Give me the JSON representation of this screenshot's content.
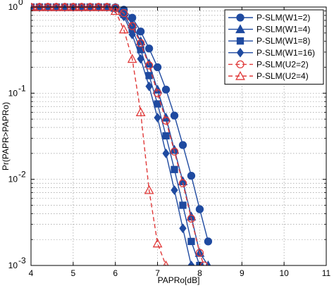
{
  "chart_data": {
    "type": "line",
    "xlabel": "PAPRo[dB]",
    "ylabel": "Pr(PAPR>PAPRo)",
    "xlim": [
      4,
      11
    ],
    "ylim": [
      0.001,
      1
    ],
    "yscale": "log",
    "grid": true,
    "legend_position": "top-right",
    "x_ticks": [
      "4",
      "5",
      "6",
      "7",
      "8",
      "9",
      "10",
      "11"
    ],
    "y_ticks": [
      {
        "value": 1,
        "base": "10",
        "exp": "0"
      },
      {
        "value": 0.1,
        "base": "10",
        "exp": "-1"
      },
      {
        "value": 0.01,
        "base": "10",
        "exp": "-2"
      },
      {
        "value": 0.001,
        "base": "10",
        "exp": "-3"
      }
    ],
    "series": [
      {
        "name": "P-SLM(W1=2)",
        "color": "#1f4aa0",
        "dash": "solid",
        "marker": "circle",
        "x": [
          4,
          4.2,
          4.4,
          4.6,
          4.8,
          5,
          5.2,
          5.4,
          5.6,
          5.8,
          6,
          6.2,
          6.4,
          6.6,
          6.8,
          7,
          7.2,
          7.4,
          7.6,
          7.8,
          8,
          8.2
        ],
        "y": [
          1,
          1,
          1,
          1,
          1,
          1,
          1,
          1,
          1,
          1,
          0.99,
          0.93,
          0.75,
          0.52,
          0.33,
          0.2,
          0.11,
          0.055,
          0.025,
          0.011,
          0.0045,
          0.0019
        ]
      },
      {
        "name": "P-SLM(W1=4)",
        "color": "#1f4aa0",
        "dash": "solid",
        "marker": "triangle",
        "x": [
          4,
          4.2,
          4.4,
          4.6,
          4.8,
          5,
          5.2,
          5.4,
          5.6,
          5.8,
          6,
          6.2,
          6.4,
          6.6,
          6.8,
          7,
          7.2,
          7.4,
          7.6,
          7.8,
          8,
          8.2
        ],
        "y": [
          1,
          1,
          1,
          1,
          1,
          1,
          1,
          1,
          1,
          1,
          0.98,
          0.87,
          0.63,
          0.4,
          0.22,
          0.11,
          0.052,
          0.022,
          0.0095,
          0.0037,
          0.0014,
          0.001
        ]
      },
      {
        "name": "P-SLM(W1=8)",
        "color": "#1f4aa0",
        "dash": "solid",
        "marker": "square",
        "x": [
          4,
          4.2,
          4.4,
          4.6,
          4.8,
          5,
          5.2,
          5.4,
          5.6,
          5.8,
          6,
          6.2,
          6.4,
          6.6,
          6.8,
          7,
          7.2,
          7.4,
          7.6,
          7.8,
          8
        ],
        "y": [
          1,
          1,
          1,
          1,
          1,
          1,
          1,
          1,
          1,
          1,
          0.97,
          0.82,
          0.55,
          0.32,
          0.16,
          0.075,
          0.032,
          0.013,
          0.005,
          0.0019,
          0.001
        ]
      },
      {
        "name": "P-SLM(W1=16)",
        "color": "#1f4aa0",
        "dash": "solid",
        "marker": "diamond",
        "x": [
          4,
          4.2,
          4.4,
          4.6,
          4.8,
          5,
          5.2,
          5.4,
          5.6,
          5.8,
          6,
          6.2,
          6.4,
          6.6,
          6.8,
          7,
          7.2,
          7.4,
          7.6,
          7.8
        ],
        "y": [
          1,
          1,
          1,
          1,
          1,
          1,
          1,
          1,
          1,
          1,
          0.96,
          0.78,
          0.48,
          0.25,
          0.12,
          0.052,
          0.02,
          0.0075,
          0.0027,
          0.001
        ]
      },
      {
        "name": "P-SLM(U2=2)",
        "color": "#e03a3a",
        "dash": "dashed",
        "marker": "circle-open",
        "x": [
          4,
          4.2,
          4.4,
          4.6,
          4.8,
          5,
          5.2,
          5.4,
          5.6,
          5.8,
          6,
          6.2,
          6.4,
          6.6,
          6.8,
          7,
          7.2,
          7.4,
          7.6,
          7.8,
          8,
          8.1
        ],
        "y": [
          1,
          1,
          1,
          1,
          1,
          1,
          1,
          1,
          1,
          1,
          0.98,
          0.85,
          0.6,
          0.38,
          0.21,
          0.1,
          0.048,
          0.021,
          0.009,
          0.0035,
          0.0014,
          0.001
        ]
      },
      {
        "name": "P-SLM(U2=4)",
        "color": "#e03a3a",
        "dash": "dashed",
        "marker": "triangle-open",
        "x": [
          4,
          4.2,
          4.4,
          4.6,
          4.8,
          5,
          5.2,
          5.4,
          5.6,
          5.8,
          6,
          6.2,
          6.4,
          6.6,
          6.8,
          7,
          7.2
        ],
        "y": [
          1,
          1,
          1,
          1,
          1,
          1,
          1,
          1,
          1,
          1,
          0.9,
          0.55,
          0.25,
          0.06,
          0.0075,
          0.0018,
          0.001
        ]
      }
    ]
  }
}
